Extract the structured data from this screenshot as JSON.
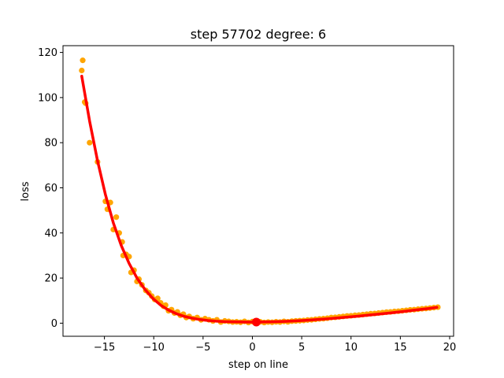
{
  "chart_data": {
    "type": "scatter",
    "title": "step 57702   degree: 6",
    "xlabel": "step on line",
    "ylabel": "loss",
    "xlim": [
      -19.2,
      20.4
    ],
    "ylim": [
      -5.8,
      123.0
    ],
    "xticks": [
      -15,
      -10,
      -5,
      0,
      5,
      10,
      15,
      20
    ],
    "xtick_labels": [
      "−15",
      "−10",
      "−5",
      "0",
      "5",
      "10",
      "15",
      "20"
    ],
    "yticks": [
      0,
      20,
      40,
      60,
      80,
      100,
      120
    ],
    "ytick_labels": [
      "0",
      "20",
      "40",
      "60",
      "80",
      "100",
      "120"
    ],
    "grid": false,
    "colors": {
      "points": "#ffa500",
      "fit": "#ff0000",
      "minimum": "#ff0000"
    },
    "series": [
      {
        "kind": "scatter",
        "x": [
          -17.2,
          -17.0,
          -17.3,
          -16.9,
          -16.5,
          -15.7,
          -14.9,
          -14.7,
          -14.4,
          -14.1,
          -13.8,
          -13.5,
          -13.2,
          -13.1,
          -12.8,
          -12.5,
          -12.3,
          -12.0,
          -11.7,
          -11.5,
          -11.2,
          -10.8,
          -10.5,
          -10.2,
          -9.9,
          -9.6,
          -9.3,
          -9.0,
          -8.8,
          -8.5,
          -8.2,
          -7.9,
          -7.6,
          -7.3,
          -7.0,
          -6.7,
          -6.4,
          -6.0,
          -5.6,
          -5.2,
          -4.8,
          -4.4,
          -4.0,
          -3.6,
          -3.2,
          -2.8,
          -2.4,
          -2.0,
          -1.6,
          -1.2,
          -0.8,
          -0.4,
          0.0,
          0.4,
          0.8,
          1.2,
          1.6,
          2.0,
          2.4,
          2.8,
          3.2,
          3.6,
          4.0,
          4.4,
          4.8,
          5.2,
          5.6,
          6.0,
          6.4,
          6.8,
          7.2,
          7.6,
          8.0,
          8.4,
          8.8,
          9.2,
          9.6,
          10.0,
          10.4,
          10.8,
          11.2,
          11.6,
          12.0,
          12.4,
          12.8,
          13.2,
          13.6,
          14.0,
          14.4,
          14.8,
          15.2,
          15.6,
          16.0,
          16.4,
          16.8,
          17.2,
          17.6,
          18.0,
          18.4,
          18.8
        ],
        "y": [
          116.5,
          98.0,
          112.0,
          97.5,
          80.0,
          71.5,
          54.0,
          50.5,
          53.5,
          41.5,
          47.0,
          40.0,
          36.0,
          30.0,
          30.5,
          29.5,
          22.5,
          23.5,
          18.5,
          19.5,
          17.0,
          14.5,
          13.5,
          12.0,
          10.5,
          11.0,
          9.0,
          7.5,
          8.0,
          5.5,
          6.0,
          4.5,
          5.0,
          3.5,
          4.0,
          2.5,
          3.0,
          2.0,
          2.5,
          1.5,
          2.0,
          1.5,
          1.0,
          1.5,
          0.5,
          1.0,
          0.8,
          0.5,
          0.6,
          0.4,
          0.8,
          0.3,
          0.7,
          0.4,
          0.6,
          0.3,
          0.5,
          0.4,
          0.6,
          0.5,
          0.8,
          0.6,
          0.9,
          1.0,
          1.1,
          1.2,
          1.4,
          1.5,
          1.7,
          1.9,
          2.0,
          2.2,
          2.5,
          2.6,
          2.8,
          3.0,
          3.2,
          3.3,
          3.5,
          3.6,
          3.8,
          4.0,
          4.2,
          4.3,
          4.5,
          4.7,
          4.9,
          5.0,
          5.2,
          5.3,
          5.5,
          5.7,
          5.9,
          6.0,
          6.2,
          6.4,
          6.5,
          6.7,
          6.9,
          7.1
        ]
      },
      {
        "kind": "line",
        "x": [
          -17.3,
          -16.5,
          -15.7,
          -14.9,
          -14.1,
          -13.3,
          -12.5,
          -11.7,
          -10.9,
          -10.1,
          -9.3,
          -8.5,
          -7.7,
          -6.9,
          -6.1,
          -5.3,
          -4.5,
          -3.7,
          -2.9,
          -2.1,
          -1.3,
          -0.5,
          0.3,
          1.1,
          1.9,
          2.7,
          3.5,
          4.3,
          5.1,
          5.9,
          6.7,
          7.5,
          8.3,
          9.1,
          9.9,
          10.7,
          11.5,
          12.3,
          13.1,
          13.9,
          14.7,
          15.5,
          16.3,
          17.1,
          17.9,
          18.7
        ],
        "y": [
          109.5,
          89.5,
          72.0,
          57.0,
          44.5,
          34.5,
          26.5,
          20.0,
          15.0,
          11.0,
          8.0,
          5.8,
          4.2,
          3.0,
          2.2,
          1.6,
          1.2,
          0.9,
          0.7,
          0.6,
          0.55,
          0.5,
          0.5,
          0.55,
          0.6,
          0.7,
          0.85,
          1.0,
          1.2,
          1.4,
          1.65,
          1.9,
          2.2,
          2.5,
          2.8,
          3.1,
          3.45,
          3.8,
          4.15,
          4.5,
          4.9,
          5.3,
          5.7,
          6.1,
          6.5,
          7.0
        ]
      },
      {
        "kind": "minimum",
        "x": [
          0.4
        ],
        "y": [
          0.5
        ]
      }
    ]
  }
}
